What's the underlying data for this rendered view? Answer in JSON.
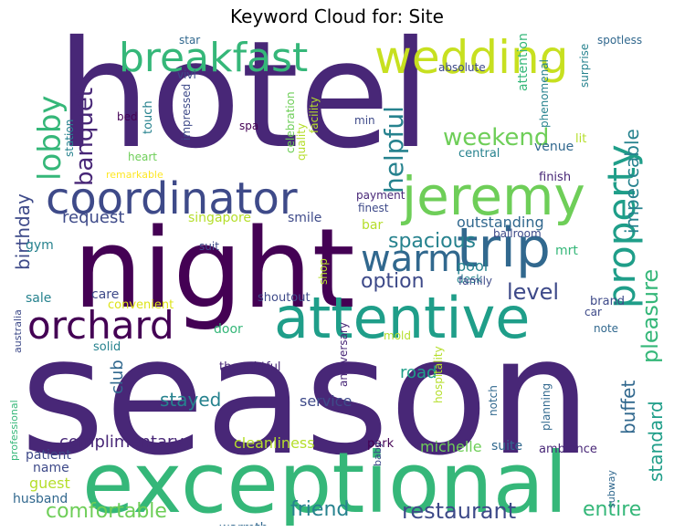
{
  "title": "Keyword Cloud for: Site",
  "palette": {
    "dark_purple": "#440154",
    "purple": "#482777",
    "indigo": "#3e4a89",
    "blue": "#31688e",
    "teal_blue": "#26828e",
    "teal": "#1f9e89",
    "green": "#35b779",
    "light_green": "#6ece58",
    "lime": "#b5de2b",
    "yellow": "#fde725"
  },
  "words": [
    {
      "text": "hotel",
      "color": "#482777",
      "orientation": "horizontal"
    },
    {
      "text": "season",
      "color": "#482777",
      "orientation": "horizontal"
    },
    {
      "text": "night",
      "color": "#440154",
      "orientation": "horizontal"
    },
    {
      "text": "exceptional",
      "color": "#35b779",
      "orientation": "horizontal"
    },
    {
      "text": "attentive",
      "color": "#1f9e89",
      "orientation": "horizontal"
    },
    {
      "text": "jeremy",
      "color": "#6ece58",
      "orientation": "horizontal"
    },
    {
      "text": "coordinator",
      "color": "#3e4a89",
      "orientation": "horizontal"
    },
    {
      "text": "trip",
      "color": "#31688e",
      "orientation": "horizontal"
    },
    {
      "text": "wedding",
      "color": "#c7e020",
      "orientation": "horizontal"
    },
    {
      "text": "breakfast",
      "color": "#35b779",
      "orientation": "horizontal"
    },
    {
      "text": "orchard",
      "color": "#440154",
      "orientation": "horizontal"
    },
    {
      "text": "property",
      "color": "#1f9e89",
      "orientation": "vertical"
    },
    {
      "text": "warm",
      "color": "#31688e",
      "orientation": "horizontal"
    },
    {
      "text": "lobby",
      "color": "#35b779",
      "orientation": "vertical"
    },
    {
      "text": "banquet",
      "color": "#482777",
      "orientation": "vertical"
    },
    {
      "text": "helpful",
      "color": "#26828e",
      "orientation": "vertical"
    },
    {
      "text": "weekend",
      "color": "#6ece58",
      "orientation": "horizontal"
    },
    {
      "text": "spacious",
      "color": "#26828e",
      "orientation": "horizontal"
    },
    {
      "text": "option",
      "color": "#3e4a89",
      "orientation": "horizontal"
    },
    {
      "text": "level",
      "color": "#3e4a89",
      "orientation": "horizontal"
    },
    {
      "text": "pleasure",
      "color": "#35b779",
      "orientation": "vertical"
    },
    {
      "text": "impeccable",
      "color": "#26828e",
      "orientation": "vertical"
    },
    {
      "text": "birthday",
      "color": "#3e4a89",
      "orientation": "vertical"
    },
    {
      "text": "request",
      "color": "#3e4a89",
      "orientation": "horizontal"
    },
    {
      "text": "singapore",
      "color": "#b5de2b",
      "orientation": "horizontal"
    },
    {
      "text": "smile",
      "color": "#3e4a89",
      "orientation": "horizontal"
    },
    {
      "text": "stayed",
      "color": "#26828e",
      "orientation": "horizontal"
    },
    {
      "text": "club",
      "color": "#31688e",
      "orientation": "vertical"
    },
    {
      "text": "buffet",
      "color": "#31688e",
      "orientation": "vertical"
    },
    {
      "text": "standard",
      "color": "#1f9e89",
      "orientation": "vertical"
    },
    {
      "text": "restaurant",
      "color": "#3e4a89",
      "orientation": "horizontal"
    },
    {
      "text": "friend",
      "color": "#26828e",
      "orientation": "horizontal"
    },
    {
      "text": "comfortable",
      "color": "#6ece58",
      "orientation": "horizontal"
    },
    {
      "text": "entire",
      "color": "#35b779",
      "orientation": "horizontal"
    },
    {
      "text": "complimentary",
      "color": "#482777",
      "orientation": "horizontal"
    },
    {
      "text": "cleanliness",
      "color": "#b5de2b",
      "orientation": "horizontal"
    },
    {
      "text": "service",
      "color": "#3e4a89",
      "orientation": "horizontal"
    },
    {
      "text": "outstanding",
      "color": "#31688e",
      "orientation": "horizontal"
    },
    {
      "text": "pool",
      "color": "#26828e",
      "orientation": "horizontal"
    },
    {
      "text": "venue",
      "color": "#31688e",
      "orientation": "horizontal"
    },
    {
      "text": "michelle",
      "color": "#6ece58",
      "orientation": "horizontal"
    },
    {
      "text": "suite",
      "color": "#31688e",
      "orientation": "horizontal"
    },
    {
      "text": "road",
      "color": "#1f9e89",
      "orientation": "horizontal"
    },
    {
      "text": "warmth",
      "color": "#31688e",
      "orientation": "horizontal"
    },
    {
      "text": "guest",
      "color": "#b5de2b",
      "orientation": "horizontal"
    },
    {
      "text": "husband",
      "color": "#31688e",
      "orientation": "horizontal"
    },
    {
      "text": "patient",
      "color": "#3e4a89",
      "orientation": "horizontal"
    },
    {
      "text": "name",
      "color": "#3e4a89",
      "orientation": "horizontal"
    },
    {
      "text": "sale",
      "color": "#26828e",
      "orientation": "horizontal"
    },
    {
      "text": "care",
      "color": "#3e4a89",
      "orientation": "horizontal"
    },
    {
      "text": "convenient",
      "color": "#dde318",
      "orientation": "horizontal"
    },
    {
      "text": "door",
      "color": "#35b779",
      "orientation": "horizontal"
    },
    {
      "text": "solid",
      "color": "#26828e",
      "orientation": "horizontal"
    },
    {
      "text": "thoughtful",
      "color": "#482777",
      "orientation": "horizontal"
    },
    {
      "text": "gym",
      "color": "#26828e",
      "orientation": "horizontal"
    },
    {
      "text": "suit",
      "color": "#3e4a89",
      "orientation": "horizontal"
    },
    {
      "text": "shoutout",
      "color": "#3e4a89",
      "orientation": "horizontal"
    },
    {
      "text": "bar",
      "color": "#b5de2b",
      "orientation": "horizontal"
    },
    {
      "text": "finest",
      "color": "#3e4a89",
      "orientation": "horizontal"
    },
    {
      "text": "payment",
      "color": "#482777",
      "orientation": "horizontal"
    },
    {
      "text": "finish",
      "color": "#482777",
      "orientation": "horizontal"
    },
    {
      "text": "central",
      "color": "#26828e",
      "orientation": "horizontal"
    },
    {
      "text": "desk",
      "color": "#26828e",
      "orientation": "horizontal"
    },
    {
      "text": "ballroom",
      "color": "#3e4a89",
      "orientation": "horizontal"
    },
    {
      "text": "mrt",
      "color": "#35b779",
      "orientation": "horizontal"
    },
    {
      "text": "family",
      "color": "#3e4a89",
      "orientation": "horizontal"
    },
    {
      "text": "brand",
      "color": "#3e4a89",
      "orientation": "horizontal"
    },
    {
      "text": "car",
      "color": "#3e4a89",
      "orientation": "horizontal"
    },
    {
      "text": "note",
      "color": "#31688e",
      "orientation": "horizontal"
    },
    {
      "text": "park",
      "color": "#440154",
      "orientation": "horizontal"
    },
    {
      "text": "ambiance",
      "color": "#482777",
      "orientation": "horizontal"
    },
    {
      "text": "mold",
      "color": "#b5de2b",
      "orientation": "horizontal"
    },
    {
      "text": "star",
      "color": "#31688e",
      "orientation": "horizontal"
    },
    {
      "text": "vivi",
      "color": "#3e4a89",
      "orientation": "horizontal"
    },
    {
      "text": "bed",
      "color": "#440154",
      "orientation": "horizontal"
    },
    {
      "text": "spa",
      "color": "#440154",
      "orientation": "horizontal"
    },
    {
      "text": "min",
      "color": "#3e4a89",
      "orientation": "horizontal"
    },
    {
      "text": "heart",
      "color": "#6ece58",
      "orientation": "horizontal"
    },
    {
      "text": "remarkable",
      "color": "#fde725",
      "orientation": "horizontal"
    },
    {
      "text": "absolute",
      "color": "#3e4a89",
      "orientation": "horizontal"
    },
    {
      "text": "spotless",
      "color": "#31688e",
      "orientation": "horizontal"
    },
    {
      "text": "lit",
      "color": "#b5de2b",
      "orientation": "horizontal"
    },
    {
      "text": "touch",
      "color": "#26828e",
      "orientation": "vertical"
    },
    {
      "text": "impressed",
      "color": "#3e4a89",
      "orientation": "vertical"
    },
    {
      "text": "station",
      "color": "#26828e",
      "orientation": "vertical"
    },
    {
      "text": "celebration",
      "color": "#6ece58",
      "orientation": "vertical"
    },
    {
      "text": "quality",
      "color": "#b5de2b",
      "orientation": "vertical"
    },
    {
      "text": "facility",
      "color": "#b5de2b",
      "orientation": "vertical"
    },
    {
      "text": "attention",
      "color": "#35b779",
      "orientation": "vertical"
    },
    {
      "text": "phenomenal",
      "color": "#26828e",
      "orientation": "vertical"
    },
    {
      "text": "surprise",
      "color": "#26828e",
      "orientation": "vertical"
    },
    {
      "text": "shop",
      "color": "#b5de2b",
      "orientation": "vertical"
    },
    {
      "text": "australia",
      "color": "#3e4a89",
      "orientation": "vertical"
    },
    {
      "text": "anniversary",
      "color": "#482777",
      "orientation": "vertical"
    },
    {
      "text": "professional",
      "color": "#35b779",
      "orientation": "vertical"
    },
    {
      "text": "hospitality",
      "color": "#b5de2b",
      "orientation": "vertical"
    },
    {
      "text": "notch",
      "color": "#31688e",
      "orientation": "vertical"
    },
    {
      "text": "planning",
      "color": "#31688e",
      "orientation": "vertical"
    },
    {
      "text": "baby",
      "color": "#3e4a89",
      "orientation": "vertical"
    },
    {
      "text": "subway",
      "color": "#31688e",
      "orientation": "vertical"
    }
  ]
}
